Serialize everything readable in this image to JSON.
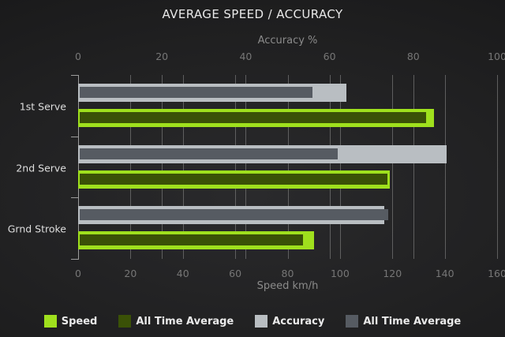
{
  "title": "AVERAGE SPEED / ACCURACY",
  "chart_data": {
    "type": "bar",
    "orientation": "horizontal",
    "grid": true,
    "legend_position": "bottom",
    "categories": [
      "1st Serve",
      "2nd Serve",
      "Grnd Stroke"
    ],
    "series": [
      {
        "name": "Speed",
        "axis": "speed",
        "role": "outer",
        "pair": "speed",
        "color": "#9fe01d",
        "values": [
          136,
          119,
          90
        ]
      },
      {
        "name": "All Time Average",
        "axis": "speed",
        "role": "inner",
        "pair": "speed",
        "color": "#3a5107",
        "values": [
          133,
          118,
          86
        ]
      },
      {
        "name": "Accuracy",
        "axis": "accuracy",
        "role": "outer",
        "pair": "accuracy",
        "color": "#b9bec2",
        "values": [
          64,
          88,
          73
        ]
      },
      {
        "name": "All Time Average",
        "axis": "accuracy",
        "role": "inner",
        "pair": "accuracy",
        "color": "#565b62",
        "values": [
          56,
          62,
          74
        ]
      }
    ],
    "axes": {
      "top": {
        "label": "Accuracy %",
        "min": 0,
        "max": 100,
        "ticks": [
          0,
          20,
          40,
          60,
          80,
          100
        ]
      },
      "bottom": {
        "label": "Speed km/h",
        "min": 0,
        "max": 160,
        "ticks": [
          0,
          20,
          40,
          60,
          80,
          100,
          120,
          140,
          160
        ]
      }
    }
  },
  "legend": {
    "items": [
      {
        "label": "Speed",
        "color": "#9fe01d"
      },
      {
        "label": "All Time Average",
        "color": "#3a5107"
      },
      {
        "label": "Accuracy",
        "color": "#b9bec2"
      },
      {
        "label": "All Time Average",
        "color": "#565b62"
      }
    ]
  },
  "colors": {
    "background_center": "#2a2a2c",
    "background_edge": "#141415",
    "gridline": "#6e6e6e",
    "axis_line": "#9c9c9c",
    "title_text": "#e8e8e8",
    "axis_title_text": "#8b8b8b",
    "tick_text": "#767676",
    "category_text": "#dedede",
    "legend_text": "#eaeaea"
  }
}
